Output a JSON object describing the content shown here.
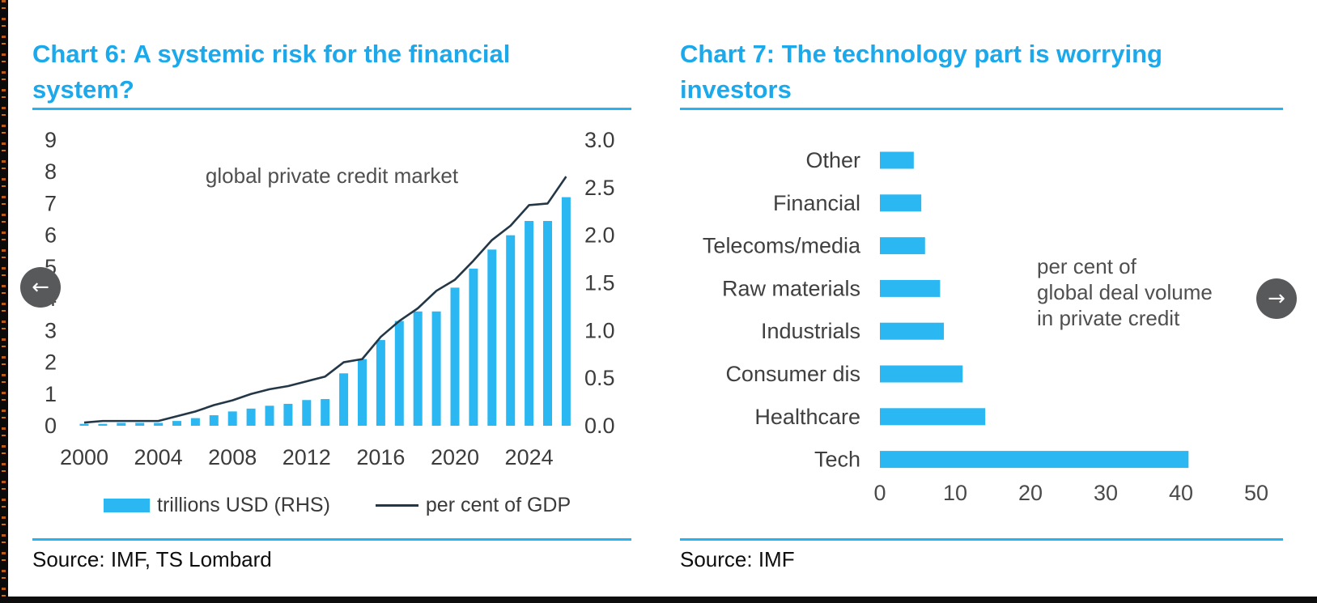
{
  "page": {
    "colors": {
      "accent_blue": "#27B2F0",
      "bar_blue": "#2BB7F1",
      "line_dark": "#243746",
      "axis_text": "#3c3c3c",
      "annotation_text": "#4f4f4f"
    },
    "nav": {
      "prev": "←",
      "next": "→"
    }
  },
  "chart_data": [
    {
      "type": "combo-bar-line",
      "title": "Chart 6: A systemic risk for the financial system?",
      "annotation": "global private credit market",
      "x_start_year": 2000,
      "x_end_year": 2026,
      "x_tick_years": [
        2000,
        2004,
        2008,
        2012,
        2016,
        2020,
        2024
      ],
      "left_axis": {
        "label_context": "per cent of GDP",
        "min": 0,
        "max": 9,
        "ticks": [
          "9",
          "8",
          "7",
          "6",
          "5",
          "4",
          "3",
          "2",
          "1",
          "0"
        ]
      },
      "right_axis": {
        "label_context": "trillions USD",
        "min": 0,
        "max": 3,
        "ticks": [
          "3.0",
          "2.5",
          "2.0",
          "1.5",
          "1.0",
          "0.5",
          "0.0"
        ]
      },
      "bars": {
        "name": "trillions USD (RHS)",
        "axis": "right",
        "values": [
          0.02,
          0.02,
          0.03,
          0.03,
          0.03,
          0.05,
          0.08,
          0.11,
          0.15,
          0.18,
          0.21,
          0.23,
          0.27,
          0.28,
          0.55,
          0.7,
          0.9,
          1.1,
          1.2,
          1.2,
          1.45,
          1.65,
          1.85,
          2.0,
          2.15,
          2.15,
          2.4
        ]
      },
      "line": {
        "name": "per cent of GDP",
        "axis": "left",
        "values": [
          0.1,
          0.15,
          0.15,
          0.15,
          0.15,
          0.3,
          0.45,
          0.65,
          0.8,
          1.0,
          1.15,
          1.25,
          1.4,
          1.55,
          2.0,
          2.1,
          2.8,
          3.3,
          3.7,
          4.25,
          4.6,
          5.2,
          5.85,
          6.3,
          6.95,
          7.0,
          7.85
        ]
      },
      "source": "Source: IMF, TS Lombard"
    },
    {
      "type": "bar",
      "orientation": "horizontal",
      "title": "Chart 7: The technology part is worrying investors",
      "annotation": "per cent of\nglobal deal volume\nin private credit",
      "categories": [
        "Other",
        "Financial",
        "Telecoms/media",
        "Raw materials",
        "Industrials",
        "Consumer dis",
        "Healthcare",
        "Tech"
      ],
      "values": [
        4.5,
        5.5,
        6,
        8,
        8.5,
        11,
        14,
        41
      ],
      "x_axis": {
        "min": 0,
        "max": 50,
        "ticks": [
          "0",
          "10",
          "20",
          "30",
          "40",
          "50"
        ]
      },
      "source": "Source: IMF"
    }
  ]
}
